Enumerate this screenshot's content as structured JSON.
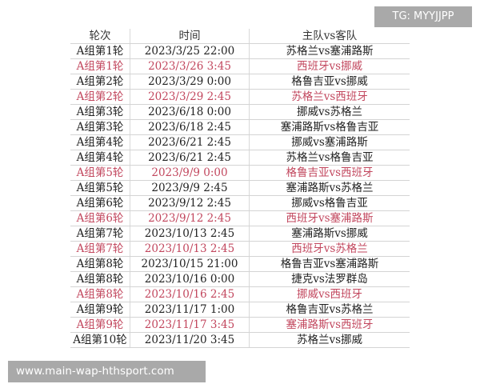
{
  "headers": [
    "轮次",
    "时间",
    "主队vs客队"
  ],
  "colors": {
    "highlight": "#c2475e",
    "text": "#222222",
    "badge_bg": "#a9a9a9"
  },
  "rows": [
    {
      "round": "A组第1轮",
      "time": "2023/3/25 22:00",
      "match": "苏格兰vs塞浦路斯",
      "highlight": false
    },
    {
      "round": "A组第1轮",
      "time": "2023/3/26 3:45",
      "match": "西班牙vs挪威",
      "highlight": true
    },
    {
      "round": "A组第2轮",
      "time": "2023/3/29 0:00",
      "match": "格鲁吉亚vs挪威",
      "highlight": false
    },
    {
      "round": "A组第2轮",
      "time": "2023/3/29 2:45",
      "match": "苏格兰vs西班牙",
      "highlight": true
    },
    {
      "round": "A组第3轮",
      "time": "2023/6/18 0:00",
      "match": "挪威vs苏格兰",
      "highlight": false
    },
    {
      "round": "A组第3轮",
      "time": "2023/6/18 2:45",
      "match": "塞浦路斯vs格鲁吉亚",
      "highlight": false
    },
    {
      "round": "A组第4轮",
      "time": "2023/6/21 2:45",
      "match": "挪威vs塞浦路斯",
      "highlight": false
    },
    {
      "round": "A组第4轮",
      "time": "2023/6/21 2:45",
      "match": "苏格兰vs格鲁吉亚",
      "highlight": false
    },
    {
      "round": "A组第5轮",
      "time": "2023/9/9 0:00",
      "match": "格鲁吉亚vs西班牙",
      "highlight": true
    },
    {
      "round": "A组第5轮",
      "time": "2023/9/9 2:45",
      "match": "塞浦路斯vs苏格兰",
      "highlight": false
    },
    {
      "round": "A组第6轮",
      "time": "2023/9/12 2:45",
      "match": "挪威vs格鲁吉亚",
      "highlight": false
    },
    {
      "round": "A组第6轮",
      "time": "2023/9/12 2:45",
      "match": "西班牙vs塞浦路斯",
      "highlight": true
    },
    {
      "round": "A组第7轮",
      "time": "2023/10/13 2:45",
      "match": "塞浦路斯vs挪威",
      "highlight": false
    },
    {
      "round": "A组第7轮",
      "time": "2023/10/13 2:45",
      "match": "西班牙vs苏格兰",
      "highlight": true
    },
    {
      "round": "A组第8轮",
      "time": "2023/10/15 21:00",
      "match": "格鲁吉亚vs塞浦路斯",
      "highlight": false
    },
    {
      "round": "A组第8轮",
      "time": "2023/10/16 0:00",
      "match": "捷克vs法罗群岛",
      "highlight": false
    },
    {
      "round": "A组第8轮",
      "time": "2023/10/16 2:45",
      "match": "挪威vs西班牙",
      "highlight": true
    },
    {
      "round": "A组第9轮",
      "time": "2023/11/17 1:00",
      "match": "格鲁吉亚vs苏格兰",
      "highlight": false
    },
    {
      "round": "A组第9轮",
      "time": "2023/11/17 3:45",
      "match": "塞浦路斯vs西班牙",
      "highlight": true
    },
    {
      "round": "A组第10轮",
      "time": "2023/11/20 3:45",
      "match": "苏格兰vs挪威",
      "highlight": false
    }
  ],
  "overlays": {
    "tg": "TG: MYYJJPP",
    "watermark": "www.main-wap-hthsport.com"
  }
}
